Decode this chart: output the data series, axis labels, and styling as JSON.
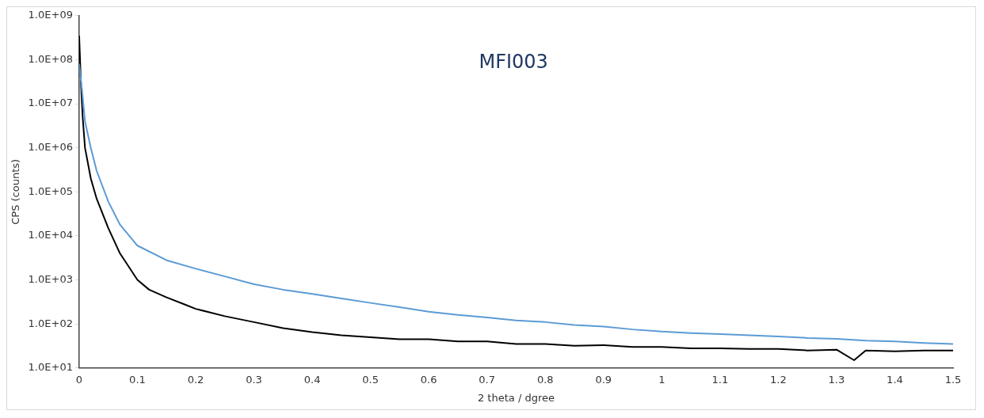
{
  "chart_data": {
    "type": "line",
    "xlabel": "2 theta / dgree",
    "ylabel": "CPS (counts)",
    "annotations": [
      "MFI003"
    ],
    "log": "y",
    "grid": false,
    "legend": false,
    "marker": "none",
    "line_style": "solid",
    "xlim": [
      0,
      1.5
    ],
    "xticks": [
      0,
      0.1,
      0.2,
      0.3,
      0.4,
      0.5,
      0.6,
      0.7,
      0.8,
      0.9,
      1,
      1.1,
      1.2,
      1.3,
      1.4,
      1.5
    ],
    "ylim": [
      10,
      1000000000
    ],
    "yticks": [
      {
        "value": 10,
        "label": "1.0E+01"
      },
      {
        "value": 100,
        "label": "1.0E+02"
      },
      {
        "value": 1000,
        "label": "1.0E+03"
      },
      {
        "value": 10000,
        "label": "1.0E+04"
      },
      {
        "value": 100000,
        "label": "1.0E+05"
      },
      {
        "value": 1000000,
        "label": "1.0E+06"
      },
      {
        "value": 10000000,
        "label": "1.0E+07"
      },
      {
        "value": 100000000,
        "label": "1.0E+08"
      },
      {
        "value": 1000000000,
        "label": "1.0E+09"
      }
    ],
    "series": [
      {
        "color": "#5b9bd5",
        "x": [
          0,
          0.005,
          0.01,
          0.02,
          0.03,
          0.05,
          0.07,
          0.1,
          0.15,
          0.2,
          0.25,
          0.3,
          0.35,
          0.4,
          0.45,
          0.5,
          0.55,
          0.6,
          0.65,
          0.7,
          0.75,
          0.8,
          0.85,
          0.9,
          0.95,
          1,
          1.05,
          1.1,
          1.15,
          1.2,
          1.25,
          1.3,
          1.35,
          1.4,
          1.45,
          1.5
        ],
        "values": [
          80000000,
          20000000,
          4000000,
          1000000,
          300000,
          60000,
          18000,
          6000,
          2800,
          1800,
          1200,
          800,
          600,
          480,
          380,
          300,
          240,
          190,
          160,
          140,
          120,
          110,
          95,
          87,
          75,
          67,
          62,
          59,
          55,
          52,
          48,
          46,
          42,
          40,
          37,
          35
        ]
      },
      {
        "color": "#000000",
        "x": [
          0,
          0.003,
          0.006,
          0.01,
          0.02,
          0.03,
          0.05,
          0.07,
          0.1,
          0.12,
          0.15,
          0.18,
          0.2,
          0.25,
          0.3,
          0.35,
          0.4,
          0.45,
          0.5,
          0.55,
          0.6,
          0.65,
          0.7,
          0.75,
          0.8,
          0.85,
          0.9,
          0.95,
          1,
          1.05,
          1.1,
          1.15,
          1.2,
          1.25,
          1.3,
          1.33,
          1.35,
          1.4,
          1.45,
          1.5
        ],
        "values": [
          350000000,
          30000000,
          5000000,
          1000000,
          200000,
          70000,
          15000,
          4000,
          1000,
          600,
          400,
          280,
          220,
          150,
          110,
          80,
          65,
          55,
          50,
          45,
          45,
          40,
          40,
          35,
          35,
          32,
          33,
          30,
          30,
          28,
          28,
          27,
          27,
          25,
          26,
          15,
          25,
          24,
          25,
          25
        ]
      }
    ]
  }
}
